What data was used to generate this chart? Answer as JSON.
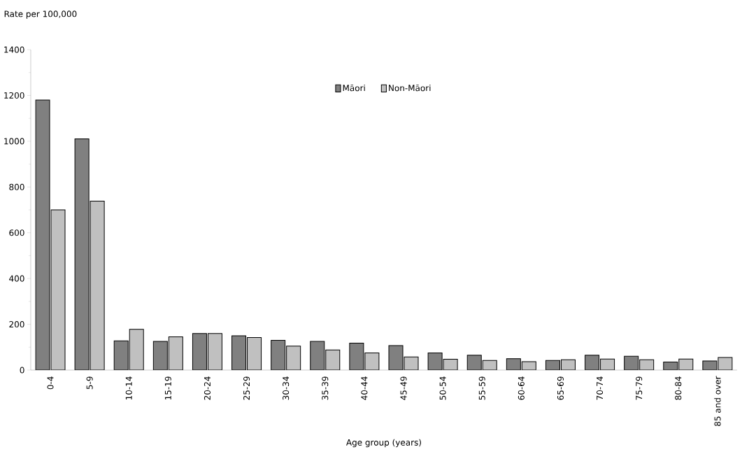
{
  "chart_data": {
    "type": "bar",
    "ylabel": "Rate per 100,000",
    "xlabel": "Age group (years)",
    "categories": [
      "0-4",
      "5-9",
      "10-14",
      "15-19",
      "20-24",
      "25-29",
      "30-34",
      "35-39",
      "40-44",
      "45-49",
      "50-54",
      "55-59",
      "60-64",
      "65-69",
      "70-74",
      "75-79",
      "80-84",
      "85 and over"
    ],
    "series": [
      {
        "name": "Māori",
        "color": "#808080",
        "values": [
          1180,
          1010,
          128,
          125,
          160,
          150,
          130,
          125,
          118,
          107,
          75,
          65,
          50,
          42,
          65,
          60,
          35,
          40
        ]
      },
      {
        "name": "Non-Māori",
        "color": "#c0c0c0",
        "values": [
          700,
          738,
          178,
          145,
          160,
          142,
          105,
          88,
          75,
          57,
          47,
          42,
          37,
          45,
          48,
          45,
          48,
          55
        ]
      }
    ],
    "ylim": [
      0,
      1400
    ],
    "yticks": [
      0,
      {
        "value": 100,
        "label": null
      },
      200,
      {
        "value": 300,
        "label": null
      },
      400,
      {
        "value": 500,
        "label": null
      },
      600,
      {
        "value": 700,
        "label": null
      },
      800,
      {
        "value": 900,
        "label": null
      },
      1000,
      {
        "value": 1100,
        "label": null
      },
      1200,
      {
        "value": 1300,
        "label": null
      },
      1400
    ],
    "legend": "top",
    "grid": false
  }
}
